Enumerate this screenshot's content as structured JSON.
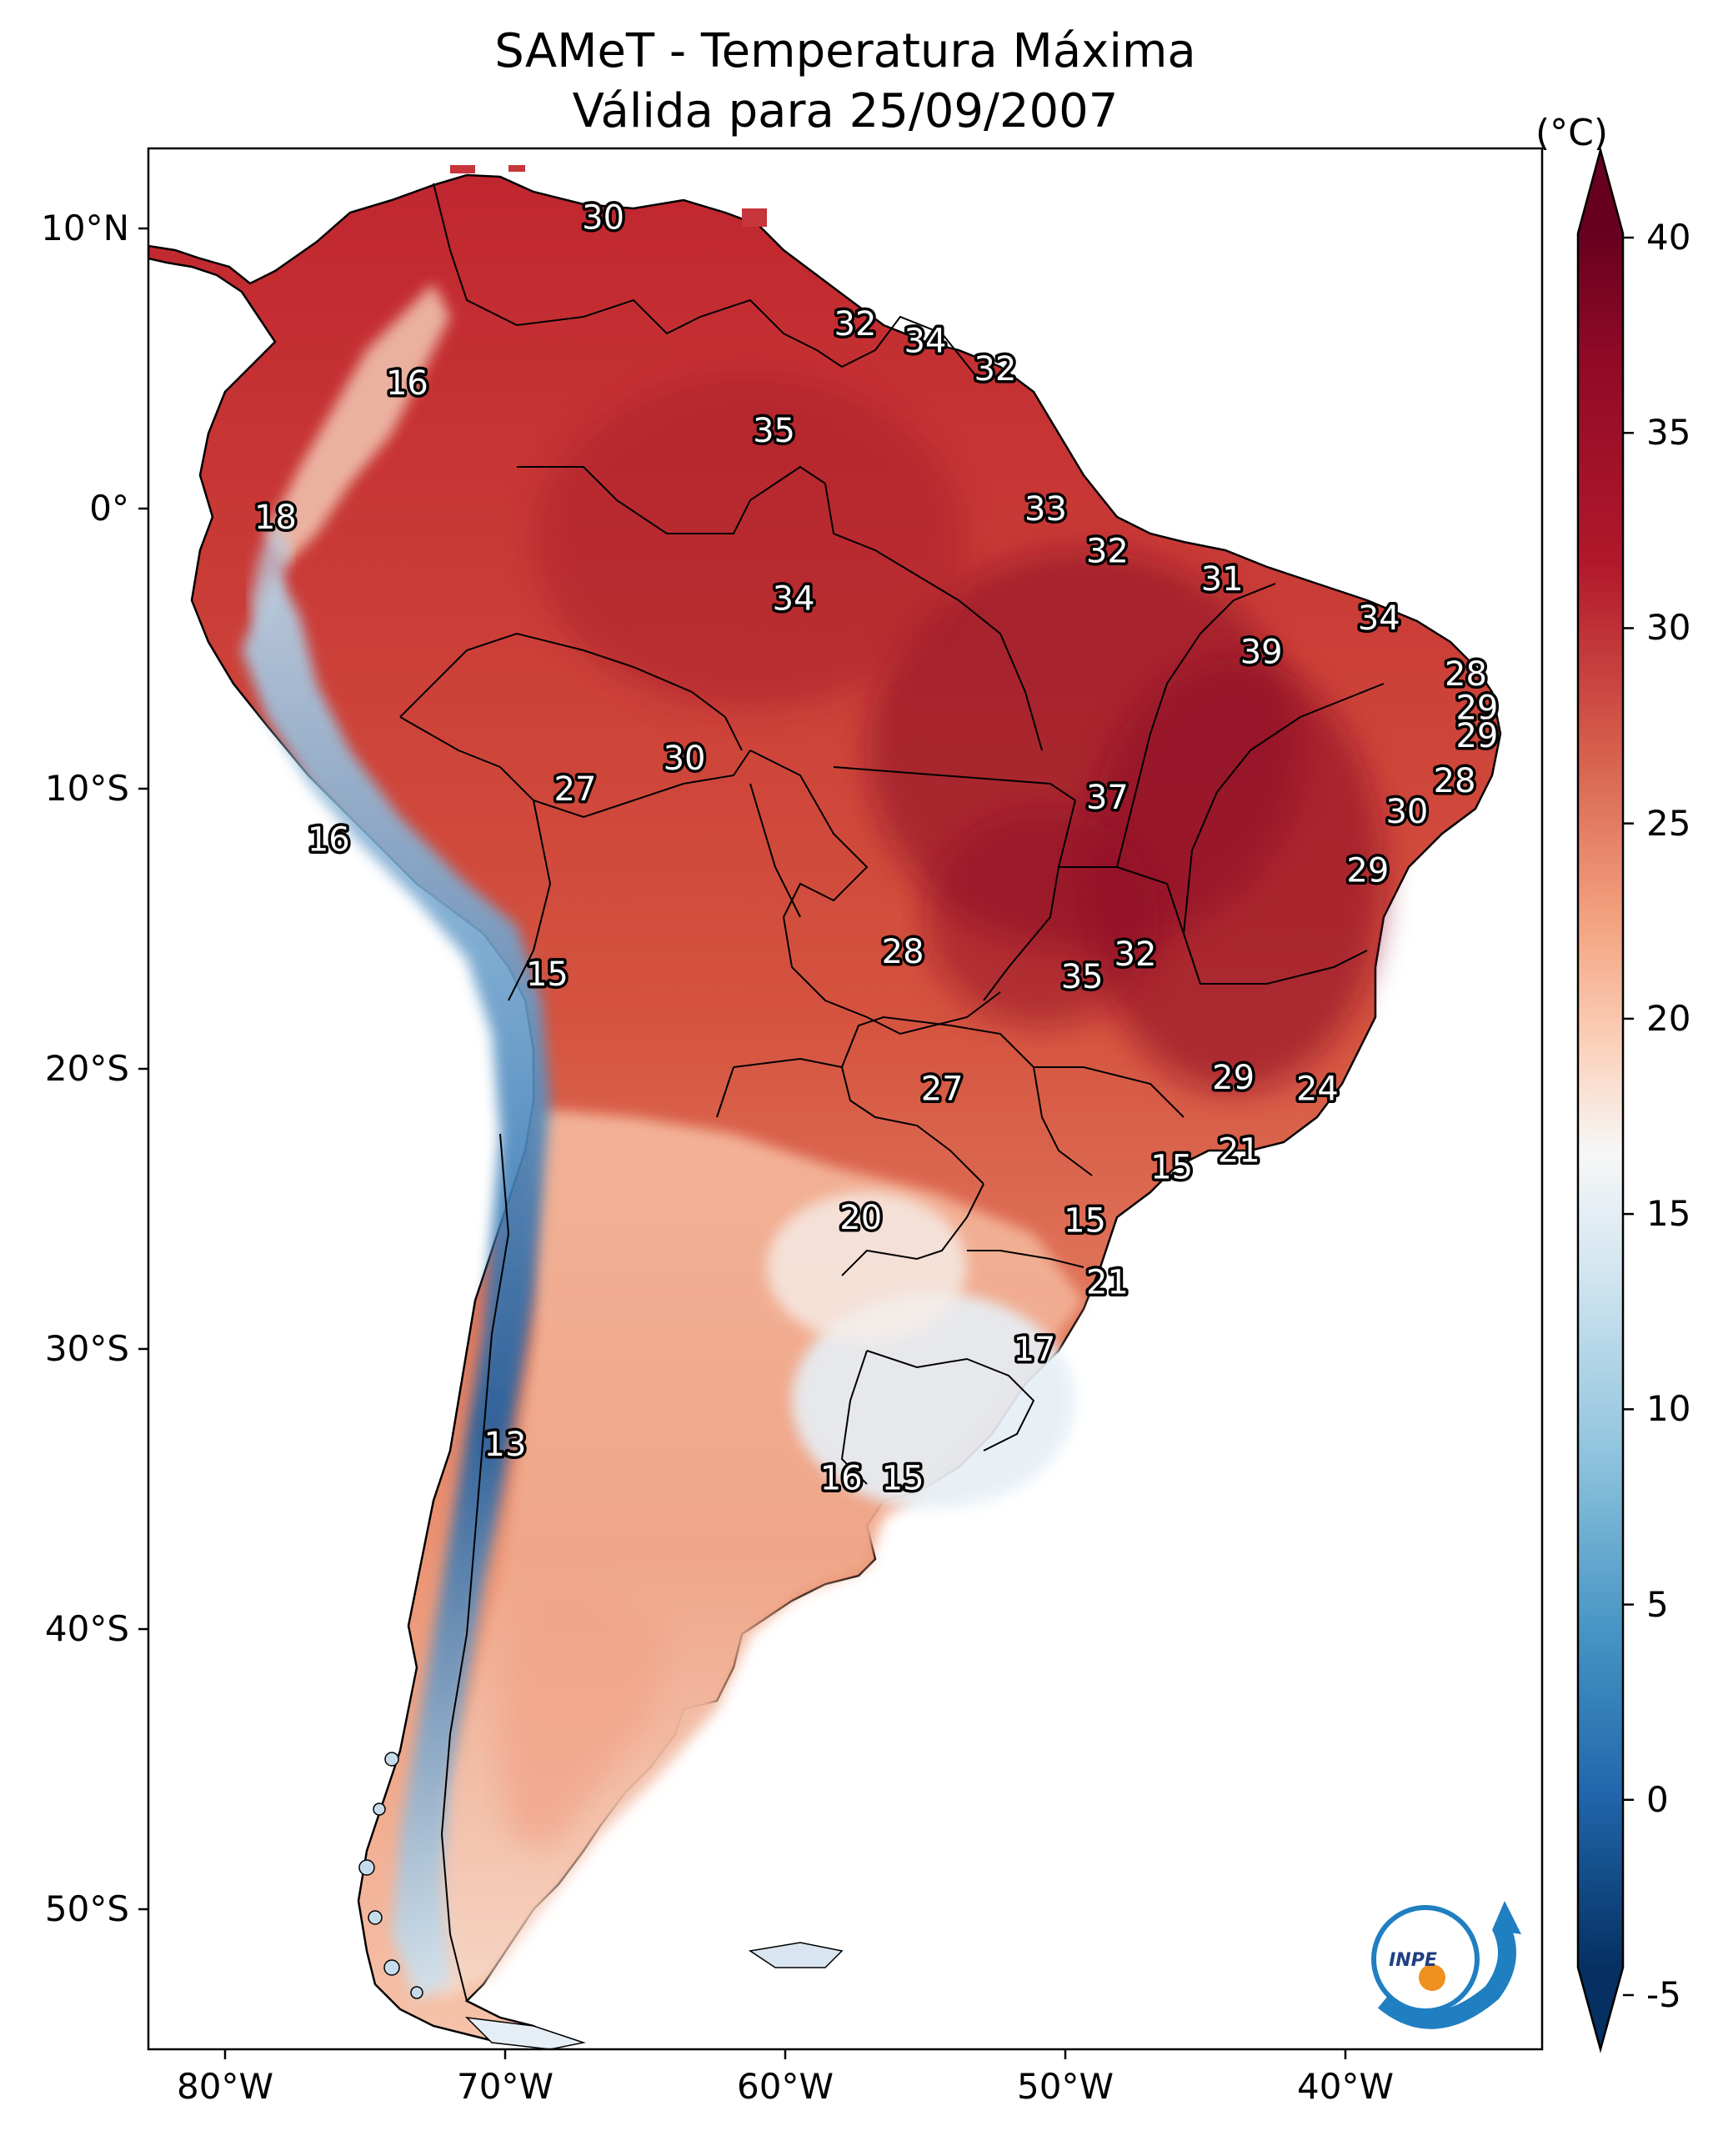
{
  "title": {
    "line1": "SAMeT - Temperatura Máxima",
    "line2": "Válida para 25/09/2007"
  },
  "axes": {
    "lat_labels": [
      "10°N",
      "0°",
      "10°S",
      "20°S",
      "30°S",
      "40°S",
      "50°S"
    ],
    "lon_labels": [
      "80°W",
      "70°W",
      "60°W",
      "50°W",
      "40°W"
    ]
  },
  "colorbar": {
    "unit": "(°C)",
    "ticks": [
      "40",
      "35",
      "30",
      "25",
      "20",
      "15",
      "10",
      "5",
      "0",
      "-5"
    ],
    "colors": [
      "#67001f",
      "#b2182b",
      "#d6604d",
      "#f4a582",
      "#fddbc7",
      "#f7f7f7",
      "#d1e5f0",
      "#92c5de",
      "#4393c3",
      "#2166ac",
      "#053061"
    ]
  },
  "station_labels": [
    {
      "value": "30",
      "lon": -66.5,
      "lat": 10.4
    },
    {
      "value": "32",
      "lon": -57.5,
      "lat": 6.6
    },
    {
      "value": "34",
      "lon": -55.0,
      "lat": 6.0
    },
    {
      "value": "32",
      "lon": -52.5,
      "lat": 5.0
    },
    {
      "value": "16",
      "lon": -73.5,
      "lat": 4.5
    },
    {
      "value": "35",
      "lon": -60.4,
      "lat": 2.8
    },
    {
      "value": "33",
      "lon": -50.7,
      "lat": 0.0
    },
    {
      "value": "18",
      "lon": -78.2,
      "lat": -0.3
    },
    {
      "value": "32",
      "lon": -48.5,
      "lat": -1.5
    },
    {
      "value": "31",
      "lon": -44.4,
      "lat": -2.5
    },
    {
      "value": "34",
      "lon": -59.7,
      "lat": -3.2
    },
    {
      "value": "34",
      "lon": -38.8,
      "lat": -3.9
    },
    {
      "value": "39",
      "lon": -43.0,
      "lat": -5.1
    },
    {
      "value": "28",
      "lon": -35.7,
      "lat": -5.9
    },
    {
      "value": "29",
      "lon": -35.3,
      "lat": -7.1
    },
    {
      "value": "29",
      "lon": -35.3,
      "lat": -8.1
    },
    {
      "value": "30",
      "lon": -63.6,
      "lat": -8.9
    },
    {
      "value": "28",
      "lon": -36.1,
      "lat": -9.7
    },
    {
      "value": "27",
      "lon": -67.5,
      "lat": -10.0
    },
    {
      "value": "37",
      "lon": -48.5,
      "lat": -10.3
    },
    {
      "value": "30",
      "lon": -37.8,
      "lat": -10.8
    },
    {
      "value": "16",
      "lon": -76.3,
      "lat": -11.8
    },
    {
      "value": "29",
      "lon": -39.2,
      "lat": -12.9
    },
    {
      "value": "28",
      "lon": -55.8,
      "lat": -15.8
    },
    {
      "value": "32",
      "lon": -47.5,
      "lat": -15.9
    },
    {
      "value": "15",
      "lon": -68.5,
      "lat": -16.6
    },
    {
      "value": "35",
      "lon": -49.4,
      "lat": -16.7
    },
    {
      "value": "29",
      "lon": -44.0,
      "lat": -20.3
    },
    {
      "value": "27",
      "lon": -54.4,
      "lat": -20.7
    },
    {
      "value": "24",
      "lon": -41.0,
      "lat": -20.7
    },
    {
      "value": "21",
      "lon": -43.8,
      "lat": -22.9
    },
    {
      "value": "15",
      "lon": -46.2,
      "lat": -23.5
    },
    {
      "value": "20",
      "lon": -57.3,
      "lat": -25.3
    },
    {
      "value": "15",
      "lon": -49.3,
      "lat": -25.4
    },
    {
      "value": "21",
      "lon": -48.5,
      "lat": -27.6
    },
    {
      "value": "17",
      "lon": -51.1,
      "lat": -30.0
    },
    {
      "value": "13",
      "lon": -70.0,
      "lat": -33.4
    },
    {
      "value": "16",
      "lon": -58.0,
      "lat": -34.6
    },
    {
      "value": "15",
      "lon": -55.8,
      "lat": -34.6
    }
  ],
  "logo": {
    "text": "INPE"
  }
}
